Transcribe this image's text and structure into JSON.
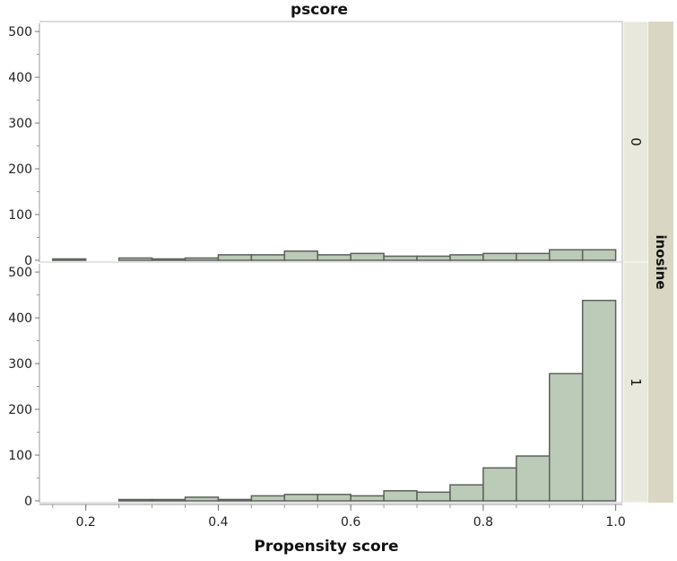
{
  "chart_data": {
    "type": "histogram",
    "title": "pscore",
    "xlabel": "Propensity score",
    "group_label": "inosine",
    "xlim": [
      0.13,
      1.01
    ],
    "ylim": [
      0,
      510
    ],
    "x_ticks": [
      "0.2",
      "0.4",
      "0.6",
      "0.8",
      "1.0"
    ],
    "y_ticks": [
      "0",
      "100",
      "200",
      "300",
      "400",
      "500"
    ],
    "bin_width": 0.05,
    "colors": {
      "bar_fill": "#bccab8",
      "bar_stroke": "#5a625a",
      "strip_fill": "#e9e8dc",
      "group_strip_fill": "#d9d7c3"
    },
    "panels": [
      {
        "name": "0",
        "bins": [
          {
            "x0": 0.15,
            "x1": 0.2,
            "count": 3
          },
          {
            "x0": 0.25,
            "x1": 0.3,
            "count": 5
          },
          {
            "x0": 0.3,
            "x1": 0.35,
            "count": 3
          },
          {
            "x0": 0.35,
            "x1": 0.4,
            "count": 5
          },
          {
            "x0": 0.4,
            "x1": 0.45,
            "count": 12
          },
          {
            "x0": 0.45,
            "x1": 0.5,
            "count": 12
          },
          {
            "x0": 0.5,
            "x1": 0.55,
            "count": 20
          },
          {
            "x0": 0.55,
            "x1": 0.6,
            "count": 12
          },
          {
            "x0": 0.6,
            "x1": 0.65,
            "count": 15
          },
          {
            "x0": 0.65,
            "x1": 0.7,
            "count": 9
          },
          {
            "x0": 0.7,
            "x1": 0.75,
            "count": 9
          },
          {
            "x0": 0.75,
            "x1": 0.8,
            "count": 12
          },
          {
            "x0": 0.8,
            "x1": 0.85,
            "count": 15
          },
          {
            "x0": 0.85,
            "x1": 0.9,
            "count": 15
          },
          {
            "x0": 0.9,
            "x1": 0.95,
            "count": 23
          },
          {
            "x0": 0.95,
            "x1": 1.0,
            "count": 23
          }
        ]
      },
      {
        "name": "1",
        "bins": [
          {
            "x0": 0.25,
            "x1": 0.3,
            "count": 2
          },
          {
            "x0": 0.3,
            "x1": 0.35,
            "count": 2
          },
          {
            "x0": 0.35,
            "x1": 0.4,
            "count": 8
          },
          {
            "x0": 0.4,
            "x1": 0.45,
            "count": 3
          },
          {
            "x0": 0.45,
            "x1": 0.5,
            "count": 11
          },
          {
            "x0": 0.5,
            "x1": 0.55,
            "count": 14
          },
          {
            "x0": 0.55,
            "x1": 0.6,
            "count": 14
          },
          {
            "x0": 0.6,
            "x1": 0.65,
            "count": 11
          },
          {
            "x0": 0.65,
            "x1": 0.7,
            "count": 22
          },
          {
            "x0": 0.7,
            "x1": 0.75,
            "count": 19
          },
          {
            "x0": 0.75,
            "x1": 0.8,
            "count": 35
          },
          {
            "x0": 0.8,
            "x1": 0.85,
            "count": 72
          },
          {
            "x0": 0.85,
            "x1": 0.9,
            "count": 98
          },
          {
            "x0": 0.9,
            "x1": 0.95,
            "count": 278
          },
          {
            "x0": 0.95,
            "x1": 1.0,
            "count": 438
          }
        ]
      }
    ]
  }
}
